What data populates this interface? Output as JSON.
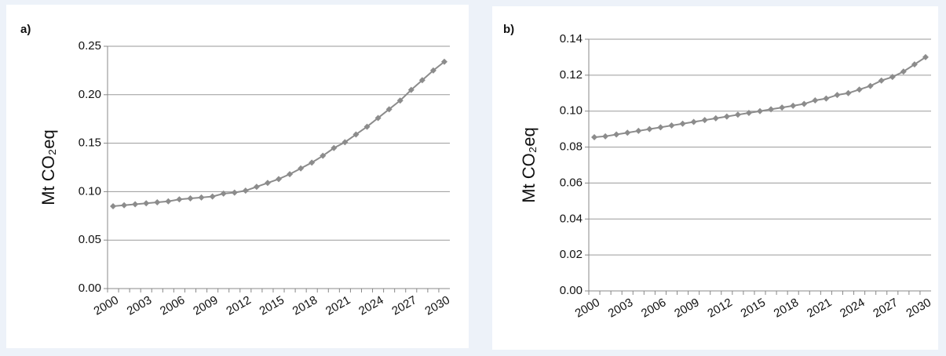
{
  "chart_data": [
    {
      "type": "line",
      "label": "a)",
      "ylabel": "Mt CO₂eq",
      "categories": [
        "2000",
        null,
        null,
        "2003",
        null,
        null,
        "2006",
        null,
        null,
        "2009",
        null,
        null,
        "2012",
        null,
        null,
        "2015",
        null,
        null,
        "2018",
        null,
        null,
        "2021",
        null,
        null,
        "2024",
        null,
        null,
        "2027",
        null,
        null,
        "2030"
      ],
      "values": [
        0.085,
        0.086,
        0.087,
        0.088,
        0.089,
        0.09,
        0.092,
        0.093,
        0.094,
        0.095,
        0.098,
        0.099,
        0.101,
        0.105,
        0.109,
        0.113,
        0.118,
        0.124,
        0.13,
        0.137,
        0.145,
        0.151,
        0.159,
        0.167,
        0.176,
        0.185,
        0.194,
        0.205,
        0.215,
        0.225,
        0.234
      ],
      "color": "#8c8c8c",
      "ylim": [
        0,
        0.25
      ],
      "yticks": [
        {
          "value": 0,
          "label": "0.00"
        },
        0.05,
        {
          "value": 0.1,
          "label": "0.10"
        },
        0.15,
        {
          "value": 0.2,
          "label": "0.20"
        },
        0.25
      ],
      "grid": true
    },
    {
      "type": "line",
      "label": "b)",
      "ylabel": "Mt CO₂eq",
      "categories": [
        "2000",
        null,
        null,
        "2003",
        null,
        null,
        "2006",
        null,
        null,
        "2009",
        null,
        null,
        "2012",
        null,
        null,
        "2015",
        null,
        null,
        "2018",
        null,
        null,
        "2021",
        null,
        null,
        "2024",
        null,
        null,
        "2027",
        null,
        null,
        "2030"
      ],
      "values": [
        0.0855,
        0.086,
        0.087,
        0.088,
        0.089,
        0.09,
        0.091,
        0.092,
        0.093,
        0.094,
        0.095,
        0.096,
        0.097,
        0.098,
        0.099,
        0.1,
        0.101,
        0.102,
        0.103,
        0.104,
        0.106,
        0.107,
        0.109,
        0.11,
        0.112,
        0.114,
        0.117,
        0.119,
        0.122,
        0.126,
        0.13
      ],
      "color": "#8c8c8c",
      "ylim": [
        0,
        0.14
      ],
      "yticks": [
        {
          "value": 0,
          "label": "0.00"
        },
        0.02,
        0.04,
        0.06,
        0.08,
        {
          "value": 0.1,
          "label": "0.10"
        },
        0.12,
        0.14
      ],
      "grid": true
    }
  ]
}
